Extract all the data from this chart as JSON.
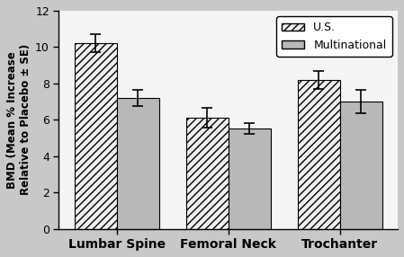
{
  "categories": [
    "Lumbar Spine",
    "Femoral Neck",
    "Trochanter"
  ],
  "us_values": [
    10.2,
    6.1,
    8.2
  ],
  "multi_values": [
    7.2,
    5.5,
    7.0
  ],
  "us_errors": [
    0.5,
    0.55,
    0.5
  ],
  "multi_errors": [
    0.45,
    0.3,
    0.65
  ],
  "ylabel": "BMD (Mean % Increase\nRelative to Placebo ± SE)",
  "ylim": [
    0,
    12
  ],
  "yticks": [
    0,
    2,
    4,
    6,
    8,
    10,
    12
  ],
  "legend_us": "U.S.",
  "legend_multi": "Multinational",
  "bar_width": 0.38,
  "us_facecolor": "#f0f0f0",
  "multi_facecolor": "#b8b8b8",
  "figure_facecolor": "#c8c8c8",
  "axes_facecolor": "#f5f5f5"
}
